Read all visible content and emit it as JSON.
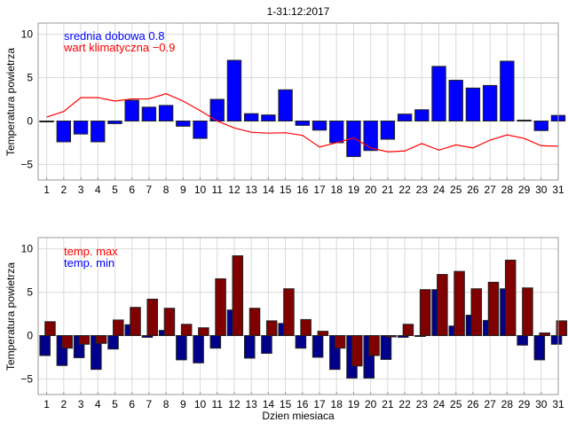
{
  "title": "1-31:12:2017",
  "colors": {
    "mean_bar": "#0000ff",
    "clim_line": "#ff0000",
    "max_bar": "#800000",
    "min_bar": "#00008b",
    "grid": "#d9d9d9",
    "frame": "#999999"
  },
  "chart_data": [
    {
      "type": "bar",
      "ylabel": "Temperatura powietrza",
      "xlabel": "",
      "xlim": [
        0.5,
        31
      ],
      "ylim": [
        -6.8,
        11.3
      ],
      "yticks": [
        -5,
        0,
        5,
        10
      ],
      "yticklabels": [
        "−5",
        "0",
        "5",
        "10"
      ],
      "x": [
        1,
        2,
        3,
        4,
        5,
        6,
        7,
        8,
        9,
        10,
        11,
        12,
        13,
        14,
        15,
        16,
        17,
        18,
        19,
        20,
        21,
        22,
        23,
        24,
        25,
        26,
        27,
        28,
        29,
        30,
        31
      ],
      "grid": true,
      "legend_placement": "top-left",
      "annotations": [
        {
          "text": "srednia dobowa 0.8",
          "color": "#0000ff"
        },
        {
          "text": "wart klimatyczna −0.9",
          "color": "#ff0000"
        }
      ],
      "series": [
        {
          "name": "srednia dobowa",
          "type": "bar",
          "values": [
            -0.1,
            -2.4,
            -1.5,
            -2.4,
            -0.3,
            2.4,
            1.6,
            1.8,
            -0.6,
            -2.0,
            2.5,
            7.0,
            0.85,
            0.7,
            3.6,
            -0.5,
            -1.05,
            -2.5,
            -4.1,
            -3.4,
            -2.1,
            0.8,
            1.3,
            6.3,
            4.7,
            3.8,
            4.1,
            6.9,
            0.1,
            -1.1,
            0.65
          ]
        },
        {
          "name": "wart klimatyczna",
          "type": "line",
          "values": [
            0.45,
            1.1,
            2.7,
            2.7,
            2.3,
            2.55,
            2.55,
            3.15,
            2.3,
            1.2,
            0.0,
            -0.8,
            -1.3,
            -1.4,
            -1.35,
            -1.65,
            -3.0,
            -2.5,
            -1.95,
            -3.1,
            -3.55,
            -3.45,
            -2.6,
            -3.35,
            -2.75,
            -3.1,
            -2.2,
            -1.6,
            -2.0,
            -2.85,
            -2.9
          ]
        }
      ]
    },
    {
      "type": "bar",
      "ylabel": "Temperatura powietrza",
      "xlabel": "Dzien miesiaca",
      "xlim": [
        0.5,
        31
      ],
      "ylim": [
        -6.8,
        11.3
      ],
      "yticks": [
        -5,
        0,
        5,
        10
      ],
      "yticklabels": [
        "−5",
        "0",
        "5",
        "10"
      ],
      "x": [
        1,
        2,
        3,
        4,
        5,
        6,
        7,
        8,
        9,
        10,
        11,
        12,
        13,
        14,
        15,
        16,
        17,
        18,
        19,
        20,
        21,
        22,
        23,
        24,
        25,
        26,
        27,
        28,
        29,
        30,
        31
      ],
      "grid": true,
      "legend_placement": "top-left",
      "legend": [
        {
          "text": "temp. max",
          "color": "#ff0000"
        },
        {
          "text": "temp. min",
          "color": "#0000ff"
        }
      ],
      "series": [
        {
          "name": "temp. min",
          "type": "bar",
          "values": [
            -2.3,
            -3.45,
            -2.55,
            -3.9,
            -1.55,
            1.25,
            -0.2,
            0.6,
            -2.8,
            -3.15,
            -1.45,
            2.95,
            -2.6,
            -2.05,
            1.4,
            -1.45,
            -2.5,
            -3.9,
            -4.9,
            -4.9,
            -2.75,
            -0.2,
            -0.1,
            5.3,
            1.1,
            2.35,
            1.75,
            5.4,
            -1.1,
            -2.8,
            -1.0
          ]
        },
        {
          "name": "temp. max",
          "type": "bar",
          "values": [
            1.6,
            -1.45,
            -1.0,
            -0.9,
            1.8,
            3.25,
            4.2,
            3.15,
            1.3,
            0.9,
            6.55,
            9.2,
            3.15,
            1.7,
            5.4,
            1.85,
            0.5,
            -1.45,
            -3.5,
            -2.3,
            -0.15,
            1.3,
            5.3,
            7.05,
            7.4,
            5.4,
            6.15,
            8.7,
            5.5,
            0.3,
            1.7
          ]
        }
      ]
    }
  ]
}
